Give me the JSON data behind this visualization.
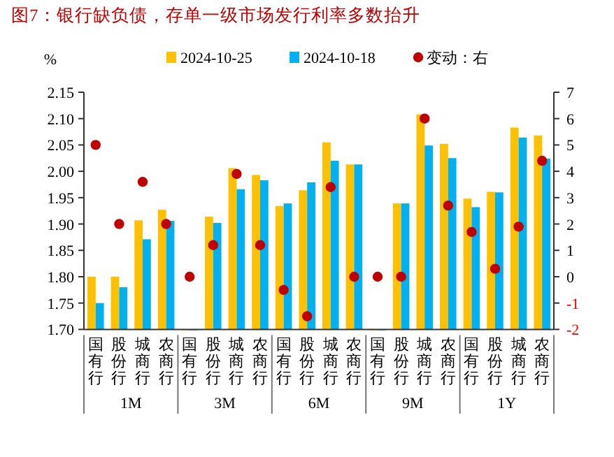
{
  "chart_data": {
    "type": "bar",
    "title": "图7：银行缺负债，存单一级市场发行利率多数抬升",
    "ylabel": "%",
    "categories": [
      "国有行",
      "股份行",
      "城商行",
      "农商行",
      "国有行",
      "股份行",
      "城商行",
      "农商行",
      "国有行",
      "股份行",
      "城商行",
      "农商行",
      "国有行",
      "股份行",
      "城商行",
      "农商行",
      "国有行",
      "股份行",
      "城商行",
      "农商行"
    ],
    "annotations": [
      "1M",
      "3M",
      "6M",
      "9M",
      "1Y"
    ],
    "series": [
      {
        "name": "2024-10-25",
        "color": "#ffc000",
        "values": [
          1.8,
          1.8,
          1.907,
          1.927,
          1.7,
          1.914,
          2.006,
          1.993,
          1.934,
          1.964,
          2.055,
          2.013,
          1.7,
          1.939,
          2.108,
          2.052,
          1.948,
          1.961,
          2.083,
          2.068
        ]
      },
      {
        "name": "2024-10-18",
        "color": "#00b0f0",
        "values": [
          1.75,
          1.78,
          1.871,
          1.906,
          1.7,
          1.902,
          1.966,
          1.983,
          1.939,
          1.979,
          2.02,
          2.013,
          1.7,
          1.939,
          2.049,
          2.025,
          1.932,
          1.96,
          2.064,
          2.024
        ]
      },
      {
        "name": "变动：右",
        "type": "scatter",
        "axis": "y2",
        "color": "#c00000",
        "values": [
          5,
          2,
          3.6,
          2,
          0,
          1.2,
          3.9,
          1.2,
          -0.5,
          -1.5,
          3.4,
          0,
          0,
          0,
          6,
          2.7,
          1.7,
          0.3,
          1.9,
          4.4
        ]
      }
    ],
    "ylim": [
      1.7,
      2.15
    ],
    "yticks": [
      {
        "value": 1.7,
        "label": "1.70"
      },
      {
        "value": 1.75,
        "label": "1.75"
      },
      {
        "value": 1.8,
        "label": "1.80"
      },
      {
        "value": 1.85,
        "label": "1.85"
      },
      {
        "value": 1.9,
        "label": "1.90"
      },
      {
        "value": 1.95,
        "label": "1.95"
      },
      {
        "value": 2.0,
        "label": "2.00"
      },
      {
        "value": 2.05,
        "label": "2.05"
      },
      {
        "value": 2.1,
        "label": "2.10"
      },
      {
        "value": 2.15,
        "label": "2.15"
      }
    ],
    "y2lim": [
      -2,
      7
    ],
    "y2ticks": [
      -2,
      -1,
      0,
      1,
      2,
      3,
      4,
      5,
      6,
      7
    ],
    "legend": "top",
    "marker": "circle",
    "grid": false
  }
}
